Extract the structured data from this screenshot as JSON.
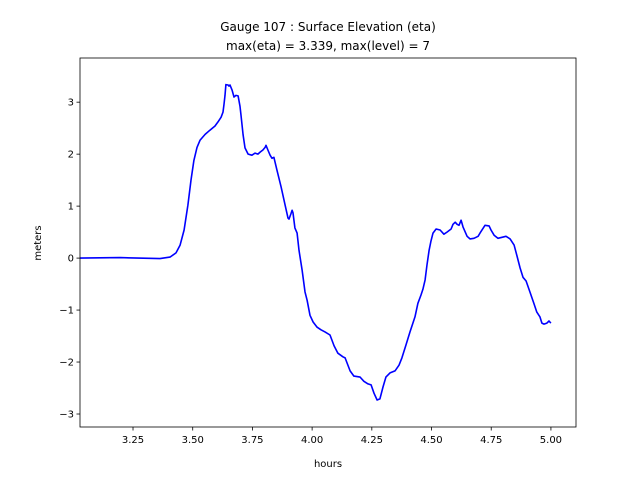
{
  "chart_data": {
    "type": "line",
    "title_line1": "Gauge 107 : Surface Elevation (eta)",
    "title_line2": "max(eta) =   3.339,    max(level) = 7",
    "xlabel": "hours",
    "ylabel": "meters",
    "xlim": [
      3.028,
      5.105
    ],
    "ylim": [
      -3.25,
      3.85
    ],
    "xticks": [
      3.25,
      3.5,
      3.75,
      4.0,
      4.25,
      4.5,
      4.75,
      5.0
    ],
    "xtick_labels": [
      "3.25",
      "3.50",
      "3.75",
      "4.00",
      "4.25",
      "4.50",
      "4.75",
      "5.00"
    ],
    "yticks": [
      -3,
      -2,
      -1,
      0,
      1,
      2,
      3
    ],
    "ytick_labels": [
      "−3",
      "−2",
      "−1",
      "0",
      "1",
      "2",
      "3"
    ],
    "grid": false,
    "series": [
      {
        "color": "#0000ff",
        "x": [
          3.028,
          3.196,
          3.363,
          3.405,
          3.43,
          3.447,
          3.464,
          3.48,
          3.493,
          3.505,
          3.518,
          3.531,
          3.552,
          3.572,
          3.593,
          3.606,
          3.619,
          3.627,
          3.631,
          3.635,
          3.639,
          3.648,
          3.652,
          3.656,
          3.665,
          3.673,
          3.681,
          3.69,
          3.698,
          3.702,
          3.711,
          3.719,
          3.732,
          3.748,
          3.761,
          3.773,
          3.782,
          3.794,
          3.803,
          3.807,
          3.815,
          3.824,
          3.832,
          3.84,
          3.853,
          3.87,
          3.887,
          3.899,
          3.903,
          3.911,
          3.916,
          3.92,
          3.928,
          3.937,
          3.945,
          3.958,
          3.97,
          3.979,
          3.991,
          4.004,
          4.021,
          4.037,
          4.054,
          4.075,
          4.092,
          4.108,
          4.129,
          4.138,
          4.159,
          4.175,
          4.201,
          4.217,
          4.234,
          4.247,
          4.259,
          4.272,
          4.284,
          4.297,
          4.309,
          4.326,
          4.347,
          4.364,
          4.376,
          4.393,
          4.41,
          4.422,
          4.431,
          4.443,
          4.456,
          4.464,
          4.473,
          4.481,
          4.49,
          4.498,
          4.506,
          4.519,
          4.536,
          4.552,
          4.565,
          4.582,
          4.59,
          4.599,
          4.607,
          4.615,
          4.624,
          4.632,
          4.649,
          4.661,
          4.678,
          4.695,
          4.703,
          4.724,
          4.741,
          4.749,
          4.762,
          4.778,
          4.795,
          4.812,
          4.829,
          4.846,
          4.858,
          4.871,
          4.883,
          4.896,
          4.912,
          4.929,
          4.941,
          4.954,
          4.962,
          4.971,
          4.983,
          4.992,
          5.0
        ],
        "y": [
          0.0,
          0.01,
          -0.01,
          0.02,
          0.1,
          0.25,
          0.54,
          1.02,
          1.5,
          1.88,
          2.13,
          2.27,
          2.38,
          2.46,
          2.54,
          2.62,
          2.71,
          2.81,
          2.96,
          3.13,
          3.339,
          3.33,
          3.31,
          3.33,
          3.23,
          3.1,
          3.13,
          3.12,
          2.92,
          2.75,
          2.37,
          2.12,
          2.0,
          1.98,
          2.02,
          2.0,
          2.04,
          2.08,
          2.13,
          2.17,
          2.08,
          1.98,
          1.92,
          1.94,
          1.69,
          1.37,
          1.02,
          0.77,
          0.75,
          0.85,
          0.92,
          0.87,
          0.58,
          0.48,
          0.15,
          -0.23,
          -0.65,
          -0.81,
          -1.1,
          -1.23,
          -1.33,
          -1.38,
          -1.42,
          -1.48,
          -1.69,
          -1.83,
          -1.9,
          -1.92,
          -2.17,
          -2.27,
          -2.29,
          -2.37,
          -2.42,
          -2.44,
          -2.6,
          -2.73,
          -2.71,
          -2.48,
          -2.29,
          -2.21,
          -2.17,
          -2.06,
          -1.92,
          -1.67,
          -1.42,
          -1.25,
          -1.13,
          -0.87,
          -0.71,
          -0.6,
          -0.42,
          -0.13,
          0.15,
          0.33,
          0.48,
          0.56,
          0.54,
          0.46,
          0.5,
          0.56,
          0.65,
          0.69,
          0.65,
          0.63,
          0.73,
          0.6,
          0.42,
          0.37,
          0.38,
          0.42,
          0.48,
          0.63,
          0.62,
          0.54,
          0.44,
          0.38,
          0.4,
          0.42,
          0.37,
          0.25,
          0.04,
          -0.19,
          -0.37,
          -0.44,
          -0.65,
          -0.88,
          -1.04,
          -1.13,
          -1.25,
          -1.27,
          -1.25,
          -1.21,
          -1.25
        ]
      }
    ]
  }
}
